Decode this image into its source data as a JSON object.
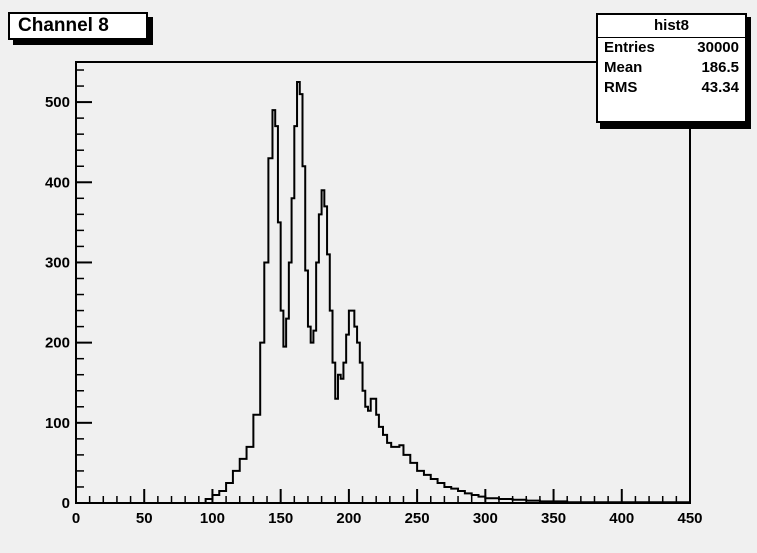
{
  "title": "Channel 8",
  "stats": {
    "name": "hist8",
    "rows": [
      {
        "label": "Entries",
        "value": "30000"
      },
      {
        "label": "Mean",
        "value": "186.5"
      },
      {
        "label": "RMS",
        "value": "43.34"
      }
    ]
  },
  "chart_data": {
    "type": "line",
    "title": "Channel 8",
    "xlim": [
      0,
      450
    ],
    "ylim": [
      0,
      550
    ],
    "x_ticks": [
      0,
      50,
      100,
      150,
      200,
      250,
      300,
      350,
      400,
      450
    ],
    "y_ticks": [
      0,
      100,
      200,
      300,
      400,
      500
    ],
    "line_color": "#000000",
    "grid": false,
    "series": [
      {
        "style": "histogram-step",
        "x": [
          95,
          100,
          105,
          110,
          115,
          120,
          125,
          130,
          135,
          138,
          141,
          144,
          146,
          148,
          150,
          152,
          154,
          156,
          158,
          160,
          162,
          164,
          166,
          168,
          170,
          172,
          174,
          176,
          178,
          180,
          182,
          184,
          186,
          188,
          190,
          192,
          194,
          196,
          198,
          200,
          202,
          204,
          206,
          208,
          210,
          212,
          214,
          216,
          218,
          220,
          222,
          225,
          228,
          231,
          234,
          237,
          240,
          245,
          250,
          255,
          260,
          265,
          270,
          275,
          280,
          285,
          290,
          295,
          300,
          310,
          320,
          330,
          340,
          350,
          360,
          380,
          400,
          420,
          450
        ],
        "y": [
          5,
          10,
          15,
          25,
          40,
          55,
          70,
          110,
          200,
          300,
          430,
          490,
          470,
          350,
          240,
          195,
          230,
          300,
          380,
          470,
          525,
          510,
          420,
          290,
          220,
          200,
          215,
          300,
          360,
          390,
          370,
          310,
          240,
          175,
          130,
          160,
          155,
          175,
          210,
          240,
          240,
          220,
          200,
          175,
          140,
          120,
          115,
          130,
          130,
          110,
          95,
          85,
          75,
          70,
          70,
          72,
          60,
          50,
          40,
          35,
          30,
          25,
          20,
          18,
          15,
          12,
          10,
          8,
          6,
          5,
          4,
          3,
          2,
          2,
          1,
          1,
          1,
          1,
          0
        ]
      }
    ]
  }
}
